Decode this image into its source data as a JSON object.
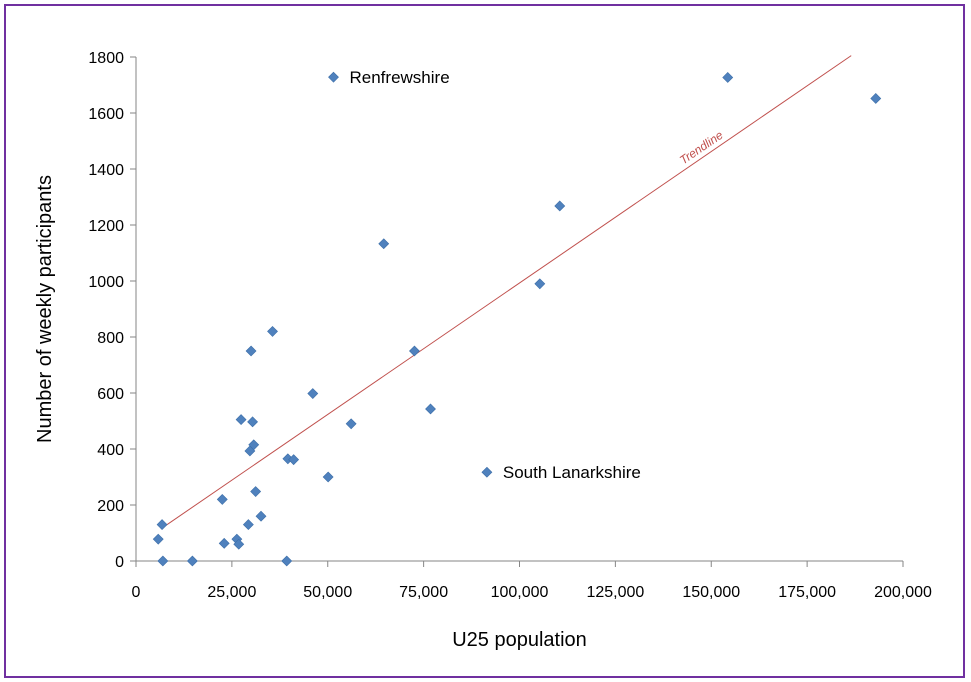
{
  "chart_data": {
    "type": "scatter",
    "title": "",
    "xlabel": "U25 population",
    "ylabel": "Number of weekly participants",
    "xlim": [
      0,
      200000
    ],
    "ylim": [
      0,
      1800
    ],
    "x_ticks": [
      0,
      25000,
      50000,
      75000,
      100000,
      125000,
      150000,
      175000,
      200000
    ],
    "x_tick_labels": [
      "0",
      "25,000",
      "50,000",
      "75,000",
      "100,000",
      "125,000",
      "150,000",
      "175,000",
      "200,000"
    ],
    "y_ticks": [
      0,
      200,
      400,
      600,
      800,
      1000,
      1200,
      1400,
      1600,
      1800
    ],
    "y_tick_labels": [
      "0",
      "200",
      "400",
      "600",
      "800",
      "1000",
      "1200",
      "1400",
      "1600",
      "1800"
    ],
    "grid": false,
    "legend": "none",
    "marker_color": "#4f81bd",
    "trendline_color": "#c0504d",
    "trendline": {
      "label": "Trendline",
      "x": [
        6500,
        186500
      ],
      "y": [
        115,
        1805
      ]
    },
    "points": [
      {
        "x": 5800,
        "y": 78
      },
      {
        "x": 6800,
        "y": 130
      },
      {
        "x": 7000,
        "y": 0
      },
      {
        "x": 14700,
        "y": 0
      },
      {
        "x": 22500,
        "y": 220
      },
      {
        "x": 23000,
        "y": 63
      },
      {
        "x": 26300,
        "y": 78
      },
      {
        "x": 26800,
        "y": 60
      },
      {
        "x": 27400,
        "y": 505
      },
      {
        "x": 29300,
        "y": 130
      },
      {
        "x": 29700,
        "y": 393
      },
      {
        "x": 30000,
        "y": 750
      },
      {
        "x": 30400,
        "y": 497
      },
      {
        "x": 30700,
        "y": 415
      },
      {
        "x": 31200,
        "y": 248
      },
      {
        "x": 32600,
        "y": 160
      },
      {
        "x": 35600,
        "y": 820
      },
      {
        "x": 39300,
        "y": 0
      },
      {
        "x": 39600,
        "y": 365
      },
      {
        "x": 41100,
        "y": 362
      },
      {
        "x": 46100,
        "y": 598
      },
      {
        "x": 50100,
        "y": 300
      },
      {
        "x": 51500,
        "y": 1728
      },
      {
        "x": 56100,
        "y": 490
      },
      {
        "x": 64600,
        "y": 1133
      },
      {
        "x": 72600,
        "y": 750
      },
      {
        "x": 76800,
        "y": 543
      },
      {
        "x": 91500,
        "y": 317
      },
      {
        "x": 105300,
        "y": 990
      },
      {
        "x": 110500,
        "y": 1268
      },
      {
        "x": 154300,
        "y": 1727
      },
      {
        "x": 192900,
        "y": 1652
      }
    ],
    "annotations": [
      {
        "text": "Renfrewshire",
        "x": 51500,
        "y": 1728
      },
      {
        "text": "South Lanarkshire",
        "x": 91500,
        "y": 317
      }
    ]
  }
}
